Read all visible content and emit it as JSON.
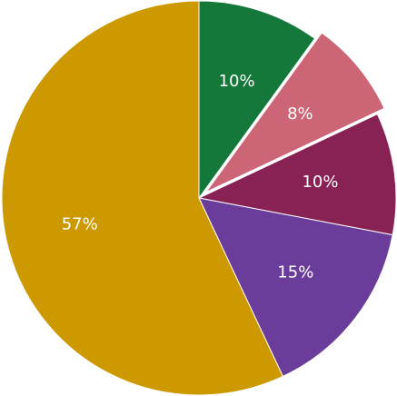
{
  "chart_data": {
    "type": "pie",
    "title": "",
    "slices": [
      {
        "value": 10,
        "label": "10%",
        "color": "#15783b"
      },
      {
        "value": 8,
        "label": "8%",
        "color": "#cc6677",
        "exploded": true
      },
      {
        "value": 10,
        "label": "10%",
        "color": "#882255"
      },
      {
        "value": 15,
        "label": "15%",
        "color": "#6b3d9a"
      },
      {
        "value": 57,
        "label": "57%",
        "color": "#cc9900"
      }
    ],
    "start_angle_deg": 0,
    "direction": "clockwise",
    "legend": "none"
  }
}
